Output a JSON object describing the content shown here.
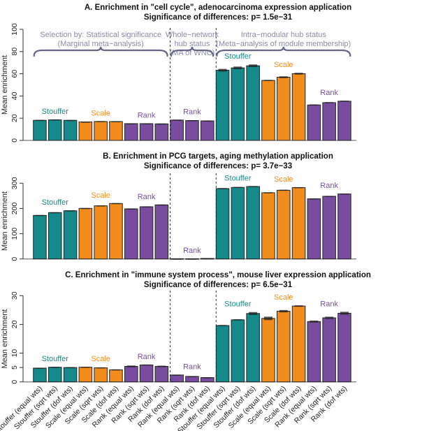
{
  "colors": {
    "Stouffer": "#16898a",
    "Scale": "#f28c1c",
    "Rank": "#7a4c9f",
    "annotation": "#8a8aa6",
    "brace": "#666688"
  },
  "categories": [
    "Stouffer (equal wts)",
    "Stouffer (sqrt wts)",
    "Stouffer (dof wts)",
    "Scale (equal wts)",
    "Scale (sqrt wts)",
    "Scale (dof wts)",
    "Rank (equal wts)",
    "Rank (sqrt wts)",
    "Rank (dof wts)",
    "Rank (equal wts)",
    "Rank (sqrt wts)",
    "Rank (dof wts)",
    "Stouffer (equal wts)",
    "Stouffer (sqrt wts)",
    "Stouffer (dof wts)",
    "Scale (equal wts)",
    "Scale (sqrt wts)",
    "Scale (dof wts)",
    "Rank (equal wts)",
    "Rank (sqrt wts)",
    "Rank (dof wts)"
  ],
  "method": [
    "Stouffer",
    "Stouffer",
    "Stouffer",
    "Scale",
    "Scale",
    "Scale",
    "Rank",
    "Rank",
    "Rank",
    "Rank",
    "Rank",
    "Rank",
    "Stouffer",
    "Stouffer",
    "Stouffer",
    "Scale",
    "Scale",
    "Scale",
    "Rank",
    "Rank",
    "Rank"
  ],
  "group_labels": [
    {
      "text": "Stouffer",
      "method": "Stouffer",
      "bars": [
        0,
        1,
        2
      ]
    },
    {
      "text": "Scale",
      "method": "Scale",
      "bars": [
        3,
        4,
        5
      ]
    },
    {
      "text": "Rank",
      "method": "Rank",
      "bars": [
        6,
        7,
        8
      ]
    },
    {
      "text": "Rank",
      "method": "Rank",
      "bars": [
        9,
        10,
        11
      ]
    },
    {
      "text": "Stouffer",
      "method": "Stouffer",
      "bars": [
        12,
        13,
        14
      ]
    },
    {
      "text": "Scale",
      "method": "Scale",
      "bars": [
        15,
        16,
        17
      ]
    },
    {
      "text": "Rank",
      "method": "Rank",
      "bars": [
        18,
        19,
        20
      ]
    }
  ],
  "annotations": [
    {
      "lines": [
        "Selection by: Statistical significance",
        "(Marginal meta−analysis)"
      ],
      "bars": [
        0,
        8
      ]
    },
    {
      "lines": [
        "Whole−network",
        "hub status",
        "(MA of WNC)"
      ],
      "bars": [
        9,
        11
      ]
    },
    {
      "lines": [
        "Intra−modular hub status",
        "(Meta−analysis of module membership)"
      ],
      "bars": [
        12,
        20
      ]
    }
  ],
  "chart_data": [
    {
      "type": "bar",
      "title": "A. Enrichment in \"cell cycle\", adenocarcinoma expression application",
      "subtitle": "Significance of differences:  p= 1.5e−31",
      "ylabel": "Mean enrichment",
      "ylim": [
        0,
        100
      ],
      "yticks": [
        0,
        20,
        40,
        60,
        80,
        100
      ],
      "values": [
        18.1,
        18.5,
        18.1,
        16.6,
        17.0,
        17.0,
        15.1,
        15.1,
        14.9,
        18.3,
        17.9,
        17.6,
        63.2,
        65.3,
        67.2,
        54.0,
        56.9,
        60.1,
        31.9,
        34.0,
        35.3
      ],
      "errors": [
        0.4,
        0.4,
        0.3,
        0.3,
        0.4,
        0.3,
        0.3,
        0.3,
        0.3,
        0.4,
        0.3,
        0.3,
        1.2,
        1.2,
        1.2,
        0.5,
        0.8,
        0.8,
        0.5,
        0.5,
        0.5
      ]
    },
    {
      "type": "bar",
      "title": "B. Enrichment in PCG targets, aging methylation application",
      "subtitle": "Significance of differences:  p= 3.7e−33",
      "ylabel": "Mean enrichment",
      "ylim": [
        0,
        300
      ],
      "yticks": [
        0,
        100,
        200,
        300
      ],
      "values": [
        172.6,
        183.7,
        191.0,
        200.3,
        210.5,
        219.7,
        198.5,
        206.8,
        214.2,
        1.0,
        1.0,
        2.0,
        278.8,
        283.4,
        287.0,
        262.2,
        272.3,
        282.5,
        238.2,
        248.3,
        257.5
      ],
      "errors": [
        1.5,
        1.5,
        1.5,
        1.5,
        1.5,
        1.5,
        1.5,
        1.5,
        1.5,
        0.5,
        0.5,
        0.5,
        2,
        2,
        2,
        2,
        2,
        2,
        1.5,
        1.5,
        1.5
      ]
    },
    {
      "type": "bar",
      "title": "C. Enrichment in \"immune system process\", mouse liver expression application",
      "subtitle": "Significance of differences:  p= 6.5e−31",
      "ylabel": "Mean enrichment",
      "ylim": [
        0,
        30
      ],
      "yticks": [
        0,
        5,
        10,
        20,
        30
      ],
      "values": [
        4.8,
        5.1,
        5.0,
        5.1,
        4.9,
        4.2,
        5.4,
        5.9,
        5.4,
        2.4,
        1.9,
        1.5,
        19.6,
        21.6,
        23.8,
        22.1,
        24.6,
        26.4,
        21.0,
        22.3,
        23.9
      ],
      "errors": [
        0.1,
        0.15,
        0.15,
        0.15,
        0.15,
        0.15,
        0.3,
        0.15,
        0.25,
        0.1,
        0.1,
        0.1,
        0.2,
        0.2,
        0.5,
        0.6,
        0.4,
        0.25,
        0.35,
        0.4,
        0.5
      ]
    }
  ]
}
